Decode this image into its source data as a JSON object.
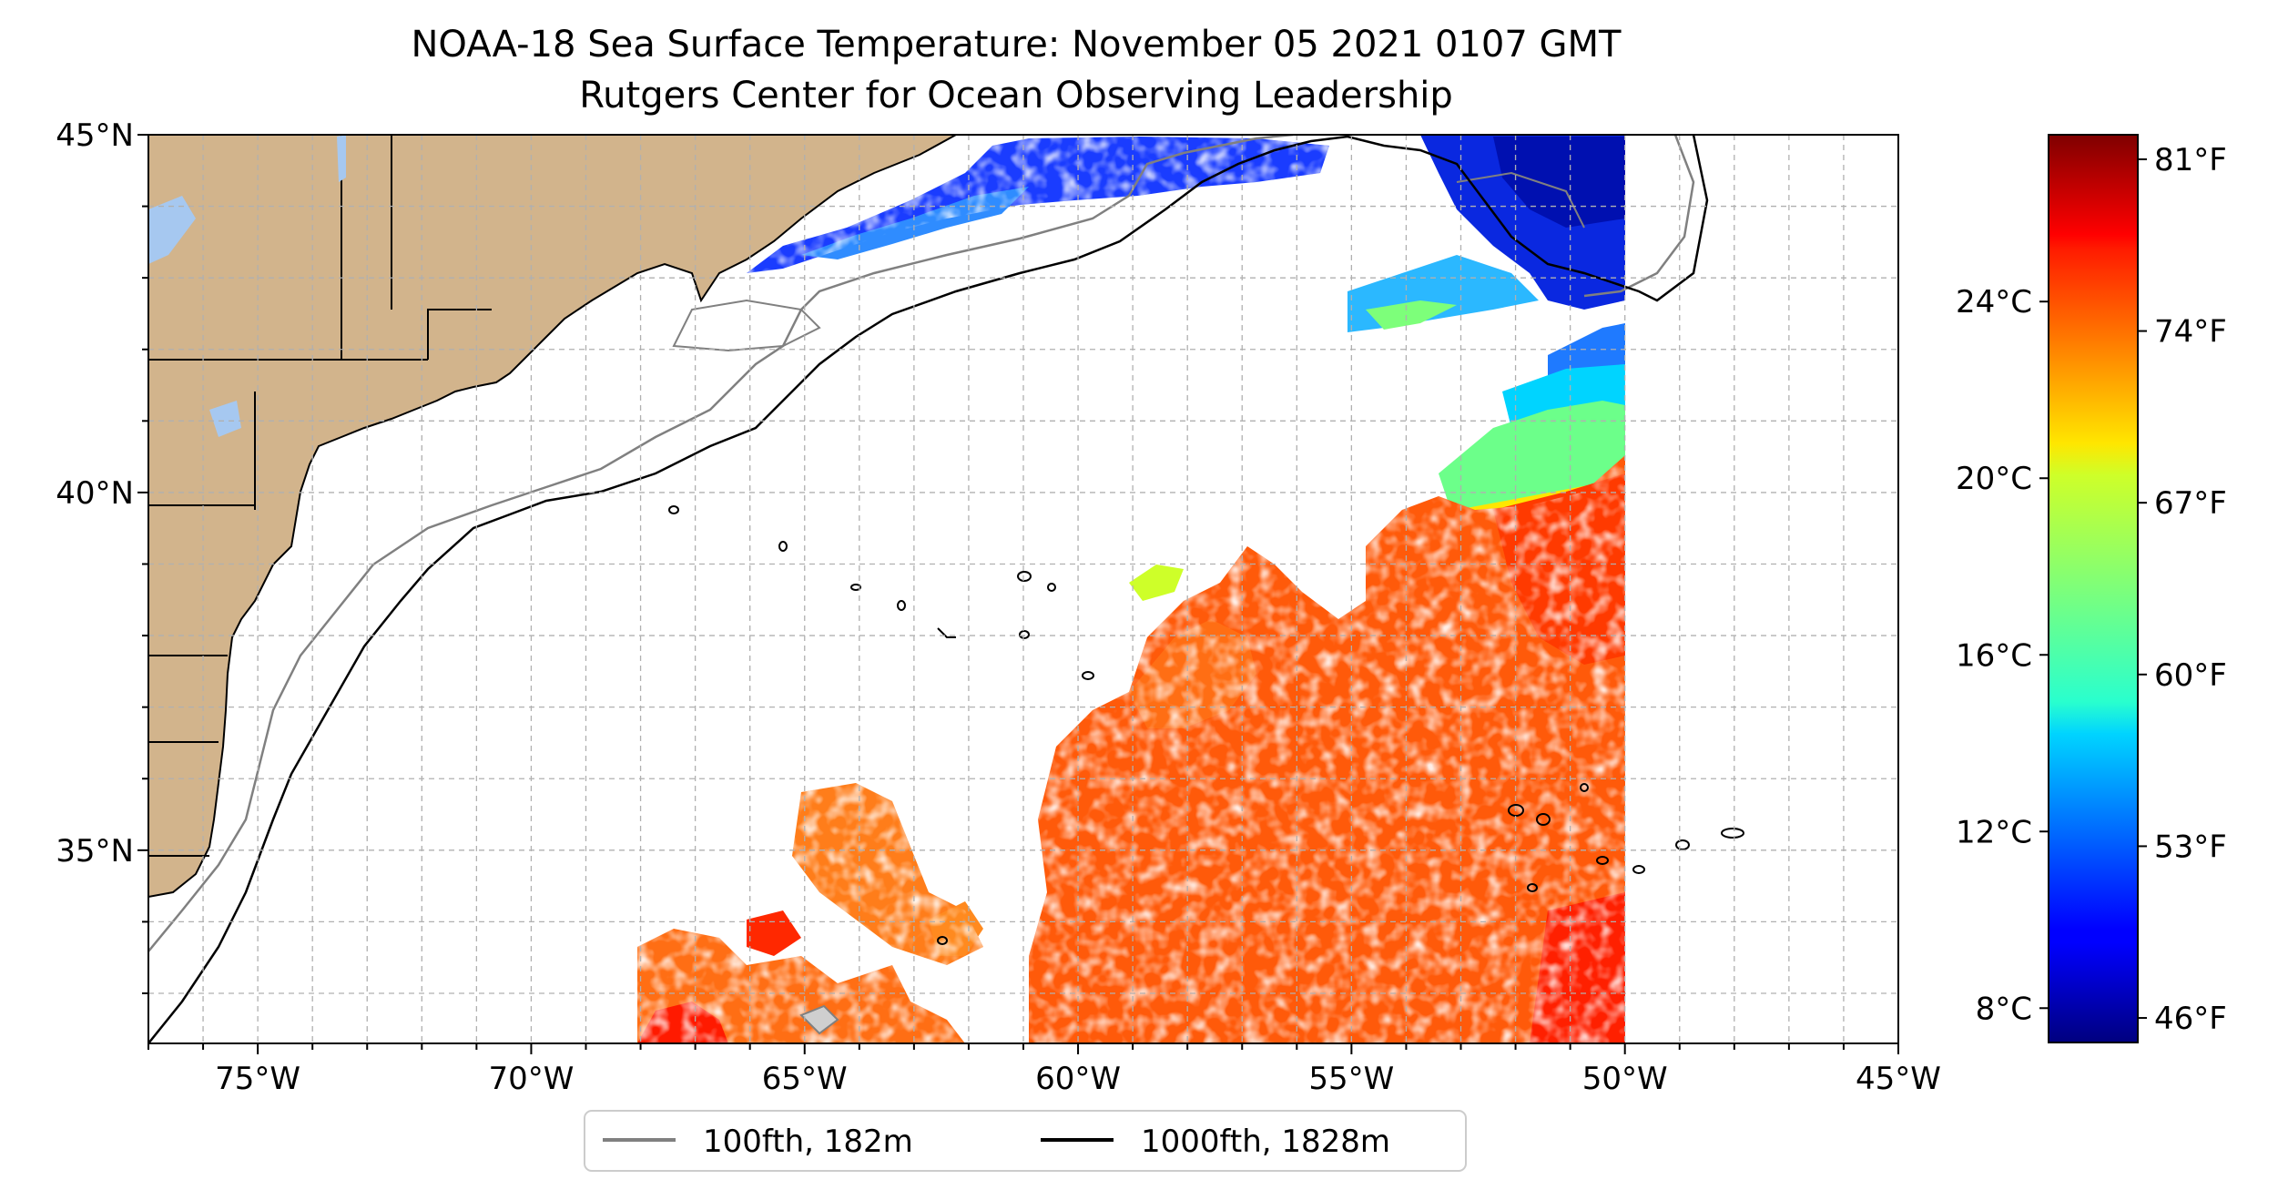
{
  "title": {
    "line1": "NOAA-18 Sea Surface Temperature: November 05 2021 0107 GMT",
    "line2": "Rutgers Center for Ocean Observing Leadership"
  },
  "map": {
    "lon_range": [
      -77,
      -45
    ],
    "lat_range": [
      32.3,
      45
    ],
    "lat_ticks": [
      {
        "value": 45,
        "label": "45°N"
      },
      {
        "value": 40,
        "label": "40°N"
      },
      {
        "value": 35,
        "label": "35°N"
      }
    ],
    "lon_ticks": [
      {
        "value": -75,
        "label": "75°W"
      },
      {
        "value": -70,
        "label": "70°W"
      },
      {
        "value": -65,
        "label": "65°W"
      },
      {
        "value": -60,
        "label": "60°W"
      },
      {
        "value": -55,
        "label": "55°W"
      },
      {
        "value": -50,
        "label": "50°W"
      },
      {
        "value": -45,
        "label": "45°W"
      }
    ],
    "grid": "dashed, every 1 degree",
    "land_color": "#d2b48c",
    "lake_color": "#a6c8f0"
  },
  "legend": {
    "items": [
      {
        "label": "100fth, 182m",
        "color": "#808080"
      },
      {
        "label": "1000fth, 1828m",
        "color": "#000000"
      }
    ],
    "placement": "bottom-center"
  },
  "colorbar": {
    "colormap": "jet",
    "celsius_ticks": [
      {
        "value": 8,
        "label": "8°C"
      },
      {
        "value": 12,
        "label": "12°C"
      },
      {
        "value": 16,
        "label": "16°C"
      },
      {
        "value": 20,
        "label": "20°C"
      },
      {
        "value": 24,
        "label": "24°C"
      }
    ],
    "fahrenheit_ticks": [
      {
        "value": 46,
        "label": "46°F"
      },
      {
        "value": 53,
        "label": "53°F"
      },
      {
        "value": 60,
        "label": "60°F"
      },
      {
        "value": 67,
        "label": "67°F"
      },
      {
        "value": 74,
        "label": "74°F"
      },
      {
        "value": 81,
        "label": "81°F"
      }
    ],
    "range_f": [
      45,
      82
    ]
  }
}
